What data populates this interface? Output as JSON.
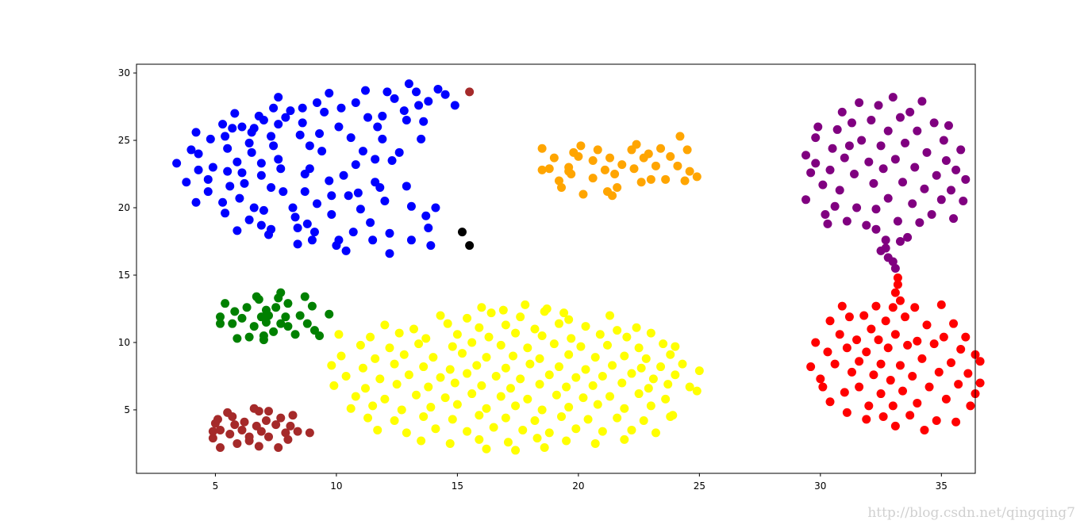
{
  "chart_data": {
    "type": "scatter",
    "xlim": [
      1.74,
      36.4
    ],
    "ylim": [
      0.29,
      30.65
    ],
    "xticks": [
      5,
      10,
      15,
      20,
      25,
      30,
      35
    ],
    "yticks": [
      5,
      10,
      15,
      20,
      25,
      30
    ],
    "grid": false,
    "watermark": "http://blog.csdn.net/qingqing7",
    "series": [
      {
        "color": "#0000ff",
        "x": [
          3.4,
          3.8,
          4.0,
          4.2,
          4.2,
          4.3,
          4.3,
          4.7,
          4.7,
          4.8,
          4.9,
          5.3,
          5.4,
          5.5,
          5.4,
          5.3,
          5.5,
          5.6,
          5.7,
          5.8,
          5.9,
          5.9,
          6.0,
          6.1,
          6.1,
          6.2,
          6.4,
          6.4,
          6.5,
          6.5,
          6.6,
          6.6,
          6.8,
          6.9,
          6.9,
          7.0,
          7.0,
          7.2,
          7.3,
          7.3,
          7.4,
          7.4,
          7.6,
          7.6,
          7.6,
          7.7,
          7.8,
          7.9,
          8.1,
          8.2,
          8.3,
          8.4,
          8.4,
          8.5,
          8.6,
          8.6,
          8.7,
          8.7,
          8.8,
          8.9,
          8.9,
          9.0,
          9.1,
          9.2,
          9.2,
          9.3,
          9.4,
          9.5,
          9.7,
          9.7,
          9.8,
          9.8,
          10.0,
          10.1,
          10.2,
          10.3,
          10.4,
          10.6,
          10.7,
          10.8,
          10.8,
          10.9,
          11.0,
          11.1,
          11.2,
          11.3,
          11.4,
          11.5,
          11.6,
          11.7,
          11.8,
          11.9,
          11.9,
          12.0,
          12.1,
          12.2,
          12.3,
          12.4,
          12.6,
          12.8,
          12.9,
          12.9,
          13.0,
          13.1,
          13.1,
          13.3,
          13.4,
          13.5,
          13.6,
          13.7,
          13.8,
          13.9,
          14.1,
          14.2,
          14.5,
          14.9,
          12.2,
          13.8,
          10.1,
          7.3,
          6.9,
          11.6,
          10.5
        ],
        "values": [
          23.3,
          21.9,
          24.3,
          20.4,
          25.6,
          22.8,
          24.0,
          21.2,
          22.1,
          25.1,
          23.0,
          26.2,
          25.3,
          24.4,
          19.6,
          20.4,
          22.7,
          21.6,
          25.9,
          27.0,
          23.4,
          18.3,
          20.7,
          26.0,
          22.6,
          21.8,
          19.1,
          24.8,
          25.6,
          24.1,
          20.0,
          25.9,
          26.8,
          23.3,
          22.4,
          26.5,
          19.8,
          18.0,
          21.5,
          25.3,
          24.6,
          27.4,
          28.2,
          26.2,
          23.6,
          22.9,
          21.2,
          26.7,
          27.2,
          20.0,
          19.3,
          18.5,
          17.3,
          25.4,
          26.3,
          27.4,
          22.5,
          21.2,
          18.8,
          24.6,
          22.9,
          17.6,
          18.2,
          20.3,
          27.8,
          25.5,
          24.2,
          27.1,
          28.5,
          22.0,
          19.5,
          20.9,
          17.2,
          26.0,
          27.4,
          22.4,
          16.8,
          25.2,
          18.2,
          27.8,
          23.2,
          21.1,
          19.9,
          24.2,
          28.7,
          26.7,
          18.9,
          17.6,
          21.9,
          26.0,
          21.5,
          26.8,
          25.1,
          20.5,
          28.6,
          18.1,
          23.5,
          28.1,
          24.1,
          27.2,
          21.6,
          26.5,
          29.2,
          20.1,
          17.6,
          28.6,
          27.6,
          25.1,
          26.4,
          19.4,
          27.9,
          17.2,
          20.0,
          28.8,
          28.4,
          27.6,
          16.6,
          18.5,
          17.6,
          18.4,
          18.7,
          23.6,
          20.9
        ]
      },
      {
        "color": "#ffff00",
        "x": [
          16.0,
          16.9,
          17.8,
          18.7,
          19.4,
          14.3,
          15.4,
          16.4,
          17.6,
          18.6,
          19.6,
          21.3,
          12.0,
          13.2,
          14.6,
          15.9,
          17.0,
          18.2,
          19.2,
          20.3,
          21.6,
          22.4,
          10.1,
          11.4,
          12.6,
          13.7,
          15.0,
          16.3,
          17.4,
          18.5,
          19.7,
          20.9,
          22.0,
          23.0,
          11.0,
          12.2,
          13.4,
          14.8,
          15.6,
          16.8,
          17.9,
          19.0,
          20.1,
          21.2,
          22.5,
          23.5,
          24.0,
          10.2,
          11.6,
          12.8,
          14.0,
          15.2,
          16.2,
          17.3,
          18.4,
          19.6,
          20.7,
          21.9,
          22.8,
          23.8,
          9.8,
          11.1,
          12.4,
          13.6,
          14.7,
          15.8,
          17.0,
          18.0,
          19.2,
          20.3,
          21.4,
          22.6,
          23.4,
          24.3,
          10.4,
          11.8,
          13.0,
          14.3,
          15.4,
          16.6,
          17.6,
          18.8,
          19.9,
          21.0,
          22.2,
          23.1,
          24.0,
          25.0,
          9.9,
          11.2,
          12.5,
          13.8,
          14.9,
          16.0,
          17.2,
          18.4,
          19.5,
          20.6,
          21.8,
          22.9,
          23.7,
          24.6,
          10.8,
          12.0,
          13.3,
          14.5,
          15.6,
          16.8,
          17.9,
          19.1,
          20.2,
          21.3,
          22.5,
          23.6,
          24.9,
          10.6,
          11.5,
          12.7,
          13.9,
          15.0,
          16.2,
          17.4,
          18.5,
          19.6,
          20.8,
          21.9,
          23.0,
          23.9,
          11.3,
          12.4,
          13.6,
          14.8,
          15.9,
          17.0,
          18.2,
          19.3,
          20.4,
          21.6,
          22.7,
          23.8,
          11.7,
          12.9,
          14.1,
          15.4,
          16.5,
          17.7,
          18.8,
          19.9,
          21.0,
          22.2,
          23.2,
          13.5,
          14.7,
          15.9,
          17.1,
          18.3,
          19.5,
          20.7,
          21.9,
          16.2,
          17.4,
          18.6
        ],
        "values": [
          12.6,
          12.4,
          12.8,
          12.5,
          12.2,
          12.0,
          11.8,
          12.2,
          11.9,
          12.3,
          11.7,
          12.0,
          11.3,
          11.0,
          11.4,
          11.1,
          11.3,
          11.0,
          11.4,
          11.2,
          10.9,
          11.1,
          10.6,
          10.4,
          10.7,
          10.3,
          10.6,
          10.4,
          10.7,
          10.5,
          10.3,
          10.6,
          10.4,
          10.7,
          9.8,
          9.6,
          9.9,
          9.7,
          10.0,
          9.8,
          9.6,
          9.9,
          9.7,
          9.8,
          9.6,
          9.9,
          9.7,
          9.0,
          8.8,
          9.1,
          8.9,
          9.2,
          8.9,
          9.0,
          8.8,
          9.1,
          8.9,
          9.0,
          8.8,
          9.1,
          8.3,
          8.1,
          8.4,
          8.2,
          8.0,
          8.3,
          8.1,
          8.4,
          8.2,
          8.0,
          8.3,
          8.1,
          8.2,
          8.4,
          7.5,
          7.3,
          7.6,
          7.4,
          7.7,
          7.5,
          7.3,
          7.6,
          7.4,
          7.5,
          7.7,
          7.3,
          7.6,
          7.9,
          6.8,
          6.6,
          6.9,
          6.7,
          7.0,
          6.8,
          6.6,
          6.9,
          6.7,
          6.8,
          7.0,
          6.6,
          6.9,
          6.7,
          6.0,
          5.8,
          6.1,
          5.9,
          6.2,
          6.0,
          5.8,
          6.1,
          5.9,
          6.0,
          6.2,
          5.8,
          6.4,
          5.1,
          5.3,
          5.0,
          5.2,
          5.4,
          5.1,
          5.3,
          5.0,
          5.2,
          5.4,
          5.1,
          5.3,
          4.6,
          4.4,
          4.2,
          4.5,
          4.3,
          4.6,
          4.4,
          4.2,
          4.5,
          4.3,
          4.4,
          4.2,
          4.5,
          3.5,
          3.3,
          3.6,
          3.4,
          3.7,
          3.5,
          3.3,
          3.6,
          3.4,
          3.5,
          3.3,
          2.7,
          2.5,
          2.8,
          2.6,
          2.9,
          2.7,
          2.5,
          2.8,
          2.1,
          2.0,
          2.2
        ]
      },
      {
        "color": "#008000",
        "x": [
          5.2,
          5.2,
          5.4,
          5.7,
          5.8,
          5.9,
          6.1,
          6.3,
          6.4,
          6.6,
          6.7,
          6.8,
          6.9,
          7.0,
          7.0,
          7.1,
          7.1,
          7.2,
          7.4,
          7.5,
          7.6,
          7.7,
          7.7,
          7.9,
          8.0,
          8.0,
          8.3,
          8.5,
          8.7,
          8.8,
          9.0,
          9.1,
          9.3,
          9.7
        ],
        "values": [
          11.4,
          11.9,
          12.9,
          11.4,
          12.3,
          10.3,
          11.8,
          12.6,
          10.4,
          11.2,
          13.4,
          13.2,
          11.9,
          10.2,
          10.5,
          11.5,
          12.4,
          12.0,
          10.8,
          12.6,
          13.3,
          11.4,
          13.7,
          11.9,
          11.2,
          12.9,
          10.6,
          12.0,
          13.4,
          11.4,
          12.7,
          10.9,
          10.5,
          12.1
        ]
      },
      {
        "color": "#a52a2a",
        "x": [
          4.9,
          4.9,
          5.0,
          5.1,
          5.2,
          5.2,
          5.5,
          5.6,
          5.7,
          5.8,
          5.9,
          6.1,
          6.2,
          6.4,
          6.4,
          6.6,
          6.7,
          6.8,
          6.8,
          6.9,
          7.1,
          7.2,
          7.2,
          7.5,
          7.6,
          7.7,
          7.9,
          8.0,
          8.1,
          8.2,
          8.4,
          8.9,
          15.5
        ],
        "values": [
          2.9,
          3.4,
          4.0,
          4.3,
          3.5,
          2.2,
          4.8,
          3.2,
          4.5,
          3.9,
          2.5,
          3.5,
          4.1,
          2.7,
          3.0,
          5.1,
          3.8,
          4.9,
          2.3,
          3.4,
          4.2,
          3.0,
          4.9,
          3.9,
          2.2,
          4.4,
          3.3,
          2.8,
          3.8,
          4.6,
          3.4,
          3.3,
          28.6
        ]
      },
      {
        "color": "#ffa500",
        "x": [
          18.5,
          18.5,
          18.8,
          19.0,
          19.2,
          19.3,
          19.6,
          19.7,
          19.8,
          20.0,
          20.1,
          20.2,
          20.6,
          20.6,
          20.8,
          21.1,
          21.3,
          21.5,
          21.6,
          21.8,
          21.4,
          22.2,
          22.3,
          22.4,
          22.6,
          22.7,
          22.9,
          23.0,
          23.2,
          23.4,
          23.6,
          23.8,
          24.1,
          24.2,
          24.4,
          24.5,
          24.6,
          24.9,
          19.6,
          21.2
        ],
        "values": [
          24.4,
          22.8,
          22.9,
          23.7,
          22.0,
          21.5,
          23.0,
          22.5,
          24.1,
          23.8,
          24.6,
          21.0,
          23.5,
          22.2,
          24.3,
          22.8,
          23.7,
          22.5,
          21.5,
          23.2,
          20.9,
          24.3,
          22.9,
          24.7,
          21.9,
          23.7,
          24.0,
          22.1,
          23.1,
          24.4,
          22.1,
          23.8,
          23.1,
          25.3,
          22.0,
          24.3,
          22.7,
          22.3,
          22.7,
          21.2
        ]
      },
      {
        "color": "#800080",
        "x": [
          29.4,
          29.4,
          29.6,
          29.8,
          29.8,
          29.9,
          30.1,
          30.2,
          30.3,
          30.4,
          30.5,
          30.6,
          30.7,
          30.8,
          30.9,
          31.0,
          31.1,
          31.2,
          31.3,
          31.4,
          31.5,
          31.6,
          31.7,
          31.9,
          32.0,
          32.1,
          32.2,
          32.3,
          32.4,
          32.5,
          32.6,
          32.7,
          32.8,
          32.8,
          33.0,
          33.1,
          33.2,
          33.3,
          33.4,
          33.5,
          33.6,
          33.7,
          33.8,
          33.9,
          34.0,
          34.1,
          34.2,
          34.3,
          34.4,
          34.6,
          34.7,
          34.8,
          35.0,
          35.1,
          35.2,
          35.3,
          35.4,
          35.5,
          35.6,
          35.8,
          35.9,
          36.0,
          32.5,
          32.8,
          33.0,
          33.1,
          32.7,
          33.3,
          32.3
        ],
        "values": [
          23.9,
          20.6,
          22.6,
          23.3,
          25.2,
          26.0,
          21.7,
          19.5,
          18.8,
          22.8,
          24.4,
          20.1,
          25.8,
          21.3,
          27.1,
          23.7,
          19.0,
          24.6,
          26.3,
          22.5,
          20.0,
          27.8,
          25.0,
          18.7,
          23.4,
          26.5,
          21.8,
          19.9,
          27.6,
          24.6,
          22.9,
          17.6,
          25.7,
          20.7,
          28.2,
          23.6,
          19.0,
          26.7,
          21.9,
          24.8,
          17.8,
          27.1,
          20.3,
          23.0,
          25.7,
          18.9,
          27.9,
          21.4,
          24.1,
          19.5,
          26.3,
          22.4,
          20.6,
          25.0,
          23.5,
          26.1,
          21.3,
          19.2,
          22.8,
          24.3,
          20.5,
          22.1,
          16.8,
          16.3,
          16.0,
          15.5,
          17.0,
          17.5,
          18.4
        ]
      },
      {
        "color": "#ff0000",
        "x": [
          33.2,
          33.2,
          33.1,
          33.3,
          29.6,
          29.8,
          30.0,
          30.1,
          30.3,
          30.4,
          30.4,
          30.6,
          30.8,
          30.9,
          31.0,
          31.1,
          31.1,
          31.2,
          31.3,
          31.5,
          31.6,
          31.6,
          31.8,
          31.9,
          31.9,
          32.0,
          32.1,
          32.2,
          32.3,
          32.4,
          32.5,
          32.5,
          32.6,
          32.7,
          32.8,
          32.9,
          33.0,
          33.0,
          33.1,
          33.1,
          33.3,
          33.4,
          33.5,
          33.6,
          33.7,
          33.8,
          33.9,
          34.0,
          34.0,
          34.2,
          34.3,
          34.4,
          34.5,
          34.7,
          34.8,
          34.9,
          35.0,
          35.1,
          35.2,
          35.4,
          35.5,
          35.6,
          35.7,
          35.8,
          36.0,
          36.1,
          36.2,
          36.4,
          36.4,
          36.6,
          36.6
        ],
        "values": [
          14.8,
          14.3,
          13.7,
          13.1,
          8.2,
          10.0,
          7.3,
          6.7,
          9.3,
          11.6,
          5.6,
          8.4,
          10.6,
          12.7,
          6.3,
          9.6,
          4.8,
          11.9,
          7.8,
          10.2,
          8.6,
          6.7,
          12.0,
          4.3,
          9.3,
          5.3,
          11.0,
          7.6,
          12.7,
          10.2,
          8.4,
          6.2,
          4.5,
          11.6,
          9.6,
          7.2,
          5.3,
          12.6,
          10.6,
          3.8,
          8.3,
          6.4,
          11.9,
          9.8,
          4.6,
          7.5,
          12.6,
          10.1,
          5.5,
          8.8,
          3.5,
          11.3,
          6.7,
          9.9,
          4.2,
          7.8,
          12.8,
          10.4,
          5.8,
          8.5,
          11.4,
          4.1,
          6.9,
          9.5,
          10.4,
          7.7,
          5.3,
          9.1,
          6.2,
          8.6,
          7.0
        ]
      },
      {
        "color": "#000000",
        "x": [
          15.2,
          15.5
        ],
        "values": [
          18.2,
          17.2
        ]
      }
    ]
  }
}
